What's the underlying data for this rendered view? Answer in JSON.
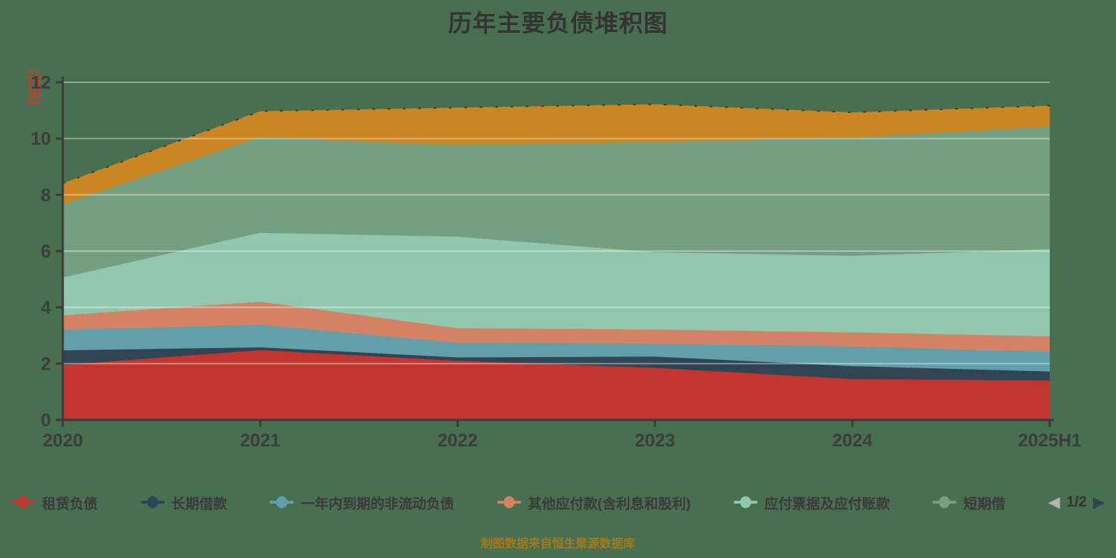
{
  "title": "历年主要负债堆积图",
  "caption": "制图数据来自恒生聚源数据库",
  "y_axis": {
    "name": "(亿元)",
    "ticks": [
      "0",
      "2",
      "4",
      "6",
      "8",
      "10",
      "12"
    ],
    "min": 0,
    "max": 12
  },
  "legend": {
    "items": [
      {
        "label": "租赁负债",
        "color": "#c23531"
      },
      {
        "label": "长期借款",
        "color": "#2f4554"
      },
      {
        "label": "一年内到期的非流动负债",
        "color": "#61a0a8"
      },
      {
        "label": "其他应付款(含利息和股利)",
        "color": "#d48265"
      },
      {
        "label": "应付票据及应付账款",
        "color": "#91c7ae"
      },
      {
        "label": "短期借",
        "color": "#749f83"
      }
    ],
    "pager": {
      "current": "1/2"
    }
  },
  "chart_data": {
    "type": "area",
    "stacked": true,
    "title": "历年主要负债堆积图",
    "unit": "亿元",
    "categories": [
      "2020",
      "2021",
      "2022",
      "2023",
      "2024",
      "2025H1"
    ],
    "series": [
      {
        "name": "租赁负债",
        "color": "#c23531",
        "values": [
          1.95,
          2.48,
          2.1,
          1.85,
          1.45,
          1.4
        ]
      },
      {
        "name": "长期借款",
        "color": "#2f4554",
        "values": [
          0.52,
          0.1,
          0.12,
          0.4,
          0.46,
          0.32
        ]
      },
      {
        "name": "一年内到期的非流动负债",
        "color": "#61a0a8",
        "values": [
          0.73,
          0.8,
          0.52,
          0.46,
          0.7,
          0.7
        ]
      },
      {
        "name": "其他应付款(含利息和股利)",
        "color": "#d48265",
        "values": [
          0.52,
          0.82,
          0.52,
          0.5,
          0.5,
          0.55
        ]
      },
      {
        "name": "应付票据及应付账款",
        "color": "#91c7ae",
        "values": [
          1.34,
          2.45,
          3.25,
          2.75,
          2.72,
          3.1
        ]
      },
      {
        "name": "短期借",
        "color": "#749f83",
        "values": [
          2.6,
          3.4,
          3.25,
          3.92,
          4.2,
          4.35
        ]
      },
      {
        "name": "",
        "color": "#ca8622",
        "values": [
          0.75,
          0.92,
          1.34,
          1.34,
          0.9,
          0.75
        ]
      }
    ],
    "ylim": [
      0,
      12
    ],
    "grid": true,
    "legend_position": "bottom"
  },
  "colors": {
    "background": "#486F4F",
    "axis": "#3A3A3A",
    "grid": "rgba(255,255,255,0.42)",
    "tick_label": "#3D3D3D",
    "y_name": "#DC3222",
    "caption": "#A2791C",
    "pager_prev": "#B3B3B3",
    "pager_next": "#2F4554"
  }
}
